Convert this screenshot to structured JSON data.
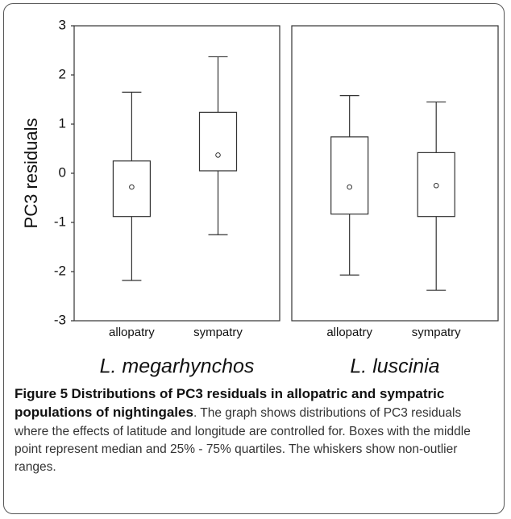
{
  "chart_data": [
    {
      "type": "box",
      "ylabel": "PC3 residuals",
      "xlabel": "L. megarhynchos",
      "categories": [
        "allopatry",
        "sympatry"
      ],
      "whisker_low": [
        -2.18,
        -1.25
      ],
      "q1": [
        -0.88,
        0.05
      ],
      "median": [
        -0.28,
        0.37
      ],
      "q3": [
        0.25,
        1.24
      ],
      "whisker_high": [
        1.65,
        2.37
      ],
      "ylim": [
        -3,
        3
      ],
      "yticks": [
        -3,
        -2,
        -1,
        0,
        1,
        2,
        3
      ]
    },
    {
      "type": "box",
      "xlabel": "L. luscinia",
      "categories": [
        "allopatry",
        "sympatry"
      ],
      "whisker_low": [
        -2.07,
        -2.38
      ],
      "q1": [
        -0.83,
        -0.88
      ],
      "median": [
        -0.28,
        -0.25
      ],
      "q3": [
        0.74,
        0.42
      ],
      "whisker_high": [
        1.58,
        1.45
      ],
      "ylim": [
        -3,
        3
      ]
    }
  ],
  "caption": {
    "label": "Figure 5",
    "title": "Distributions of PC3 residuals in allopatric and sympatric populations of nightingales",
    "text": ". The graph shows distributions of PC3 residuals where the effects of latitude and longitude are controlled for. Boxes with the middle point represent median and 25% - 75% quartiles. The whiskers show non-outlier ranges."
  }
}
